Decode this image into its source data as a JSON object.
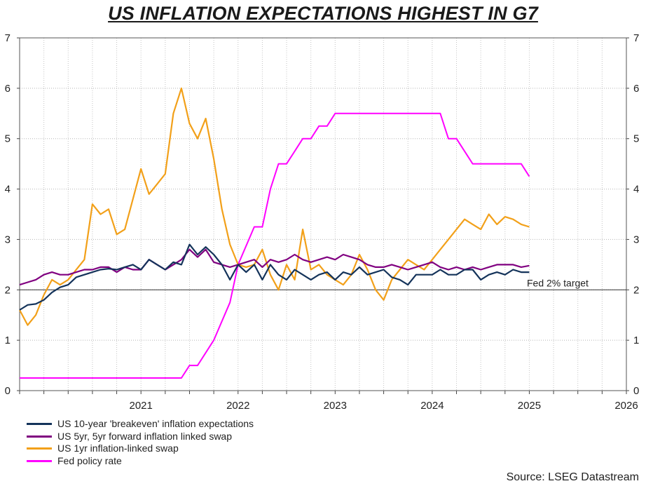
{
  "chart_data": {
    "type": "line",
    "title": "US INFLATION EXPECTATIONS HIGHEST IN G7",
    "xlabel": "",
    "ylabel": "",
    "x_ticks": [
      "2021",
      "2022",
      "2023",
      "2024",
      "2025",
      "2026"
    ],
    "y_ticks": [
      0,
      1,
      2,
      3,
      4,
      5,
      6,
      7
    ],
    "ylim": [
      0,
      7
    ],
    "xlim": [
      "2020-04",
      "2026-07"
    ],
    "grid": true,
    "dual_y_axis": true,
    "legend_position": "bottom-left",
    "reference_lines": [
      {
        "y": 2,
        "label": "Fed 2% target"
      }
    ],
    "series": [
      {
        "name": "US 10-year 'breakeven' inflation expectations",
        "color": "#14335a",
        "points": [
          [
            "2020-04",
            1.6
          ],
          [
            "2020-05",
            1.7
          ],
          [
            "2020-06",
            1.72
          ],
          [
            "2020-07",
            1.8
          ],
          [
            "2020-08",
            1.95
          ],
          [
            "2020-09",
            2.05
          ],
          [
            "2020-10",
            2.1
          ],
          [
            "2020-11",
            2.25
          ],
          [
            "2020-12",
            2.3
          ],
          [
            "2021-01",
            2.35
          ],
          [
            "2021-02",
            2.4
          ],
          [
            "2021-03",
            2.42
          ],
          [
            "2021-04",
            2.4
          ],
          [
            "2021-05",
            2.45
          ],
          [
            "2021-06",
            2.5
          ],
          [
            "2021-07",
            2.4
          ],
          [
            "2021-08",
            2.6
          ],
          [
            "2021-09",
            2.5
          ],
          [
            "2021-10",
            2.4
          ],
          [
            "2021-11",
            2.55
          ],
          [
            "2021-12",
            2.5
          ],
          [
            "2022-01",
            2.9
          ],
          [
            "2022-02",
            2.7
          ],
          [
            "2022-03",
            2.85
          ],
          [
            "2022-04",
            2.7
          ],
          [
            "2022-05",
            2.5
          ],
          [
            "2022-06",
            2.2
          ],
          [
            "2022-07",
            2.5
          ],
          [
            "2022-08",
            2.35
          ],
          [
            "2022-09",
            2.5
          ],
          [
            "2022-10",
            2.2
          ],
          [
            "2022-11",
            2.5
          ],
          [
            "2022-12",
            2.3
          ],
          [
            "2023-01",
            2.2
          ],
          [
            "2023-02",
            2.4
          ],
          [
            "2023-03",
            2.3
          ],
          [
            "2023-04",
            2.2
          ],
          [
            "2023-05",
            2.3
          ],
          [
            "2023-06",
            2.35
          ],
          [
            "2023-07",
            2.2
          ],
          [
            "2023-08",
            2.35
          ],
          [
            "2023-09",
            2.3
          ],
          [
            "2023-10",
            2.45
          ],
          [
            "2023-11",
            2.3
          ],
          [
            "2023-12",
            2.35
          ],
          [
            "2024-01",
            2.4
          ],
          [
            "2024-02",
            2.25
          ],
          [
            "2024-03",
            2.2
          ],
          [
            "2024-04",
            2.1
          ],
          [
            "2024-05",
            2.3
          ],
          [
            "2024-06",
            2.3
          ],
          [
            "2024-07",
            2.3
          ],
          [
            "2024-08",
            2.4
          ],
          [
            "2024-09",
            2.3
          ],
          [
            "2024-10",
            2.3
          ],
          [
            "2024-11",
            2.4
          ],
          [
            "2024-12",
            2.4
          ],
          [
            "2025-01",
            2.2
          ],
          [
            "2025-02",
            2.3
          ],
          [
            "2025-03",
            2.35
          ],
          [
            "2025-04",
            2.3
          ],
          [
            "2025-05",
            2.4
          ],
          [
            "2025-06",
            2.35
          ],
          [
            "2025-07",
            2.35
          ]
        ]
      },
      {
        "name": "US 5yr, 5yr forward inflation linked swap",
        "color": "#800080",
        "points": [
          [
            "2020-04",
            2.1
          ],
          [
            "2020-05",
            2.15
          ],
          [
            "2020-06",
            2.2
          ],
          [
            "2020-07",
            2.3
          ],
          [
            "2020-08",
            2.35
          ],
          [
            "2020-09",
            2.3
          ],
          [
            "2020-10",
            2.3
          ],
          [
            "2020-11",
            2.35
          ],
          [
            "2020-12",
            2.4
          ],
          [
            "2021-01",
            2.4
          ],
          [
            "2021-02",
            2.45
          ],
          [
            "2021-03",
            2.45
          ],
          [
            "2021-04",
            2.35
          ],
          [
            "2021-05",
            2.45
          ],
          [
            "2021-06",
            2.4
          ],
          [
            "2021-07",
            2.4
          ],
          [
            "2021-08",
            2.6
          ],
          [
            "2021-09",
            2.5
          ],
          [
            "2021-10",
            2.4
          ],
          [
            "2021-11",
            2.5
          ],
          [
            "2021-12",
            2.6
          ],
          [
            "2022-01",
            2.8
          ],
          [
            "2022-02",
            2.65
          ],
          [
            "2022-03",
            2.8
          ],
          [
            "2022-04",
            2.55
          ],
          [
            "2022-05",
            2.5
          ],
          [
            "2022-06",
            2.45
          ],
          [
            "2022-07",
            2.5
          ],
          [
            "2022-08",
            2.55
          ],
          [
            "2022-09",
            2.6
          ],
          [
            "2022-10",
            2.45
          ],
          [
            "2022-11",
            2.6
          ],
          [
            "2022-12",
            2.55
          ],
          [
            "2023-01",
            2.6
          ],
          [
            "2023-02",
            2.7
          ],
          [
            "2023-03",
            2.6
          ],
          [
            "2023-04",
            2.55
          ],
          [
            "2023-05",
            2.6
          ],
          [
            "2023-06",
            2.65
          ],
          [
            "2023-07",
            2.6
          ],
          [
            "2023-08",
            2.7
          ],
          [
            "2023-09",
            2.65
          ],
          [
            "2023-10",
            2.6
          ],
          [
            "2023-11",
            2.5
          ],
          [
            "2023-12",
            2.45
          ],
          [
            "2024-01",
            2.45
          ],
          [
            "2024-02",
            2.5
          ],
          [
            "2024-03",
            2.45
          ],
          [
            "2024-04",
            2.4
          ],
          [
            "2024-05",
            2.45
          ],
          [
            "2024-06",
            2.5
          ],
          [
            "2024-07",
            2.55
          ],
          [
            "2024-08",
            2.45
          ],
          [
            "2024-09",
            2.4
          ],
          [
            "2024-10",
            2.45
          ],
          [
            "2024-11",
            2.4
          ],
          [
            "2024-12",
            2.45
          ],
          [
            "2025-01",
            2.4
          ],
          [
            "2025-02",
            2.45
          ],
          [
            "2025-03",
            2.5
          ],
          [
            "2025-04",
            2.5
          ],
          [
            "2025-05",
            2.5
          ],
          [
            "2025-06",
            2.45
          ],
          [
            "2025-07",
            2.48
          ]
        ]
      },
      {
        "name": "US 1yr inflation-linked swap",
        "color": "#f2a019",
        "points": [
          [
            "2020-04",
            1.6
          ],
          [
            "2020-05",
            1.3
          ],
          [
            "2020-06",
            1.5
          ],
          [
            "2020-07",
            1.9
          ],
          [
            "2020-08",
            2.2
          ],
          [
            "2020-09",
            2.1
          ],
          [
            "2020-10",
            2.2
          ],
          [
            "2020-11",
            2.4
          ],
          [
            "2020-12",
            2.6
          ],
          [
            "2021-01",
            3.7
          ],
          [
            "2021-02",
            3.5
          ],
          [
            "2021-03",
            3.6
          ],
          [
            "2021-04",
            3.1
          ],
          [
            "2021-05",
            3.2
          ],
          [
            "2021-06",
            3.8
          ],
          [
            "2021-07",
            4.4
          ],
          [
            "2021-08",
            3.9
          ],
          [
            "2021-09",
            4.1
          ],
          [
            "2021-10",
            4.3
          ],
          [
            "2021-11",
            5.5
          ],
          [
            "2021-12",
            6.0
          ],
          [
            "2022-01",
            5.3
          ],
          [
            "2022-02",
            5.0
          ],
          [
            "2022-03",
            5.4
          ],
          [
            "2022-04",
            4.6
          ],
          [
            "2022-05",
            3.6
          ],
          [
            "2022-06",
            2.9
          ],
          [
            "2022-07",
            2.5
          ],
          [
            "2022-08",
            2.45
          ],
          [
            "2022-09",
            2.5
          ],
          [
            "2022-10",
            2.8
          ],
          [
            "2022-11",
            2.3
          ],
          [
            "2022-12",
            2.0
          ],
          [
            "2023-01",
            2.5
          ],
          [
            "2023-02",
            2.2
          ],
          [
            "2023-03",
            3.2
          ],
          [
            "2023-04",
            2.4
          ],
          [
            "2023-05",
            2.5
          ],
          [
            "2023-06",
            2.3
          ],
          [
            "2023-07",
            2.2
          ],
          [
            "2023-08",
            2.1
          ],
          [
            "2023-09",
            2.3
          ],
          [
            "2023-10",
            2.7
          ],
          [
            "2023-11",
            2.4
          ],
          [
            "2023-12",
            2.0
          ],
          [
            "2024-01",
            1.8
          ],
          [
            "2024-02",
            2.2
          ],
          [
            "2024-03",
            2.4
          ],
          [
            "2024-04",
            2.6
          ],
          [
            "2024-05",
            2.5
          ],
          [
            "2024-06",
            2.4
          ],
          [
            "2024-07",
            2.6
          ],
          [
            "2024-08",
            2.8
          ],
          [
            "2024-09",
            3.0
          ],
          [
            "2024-10",
            3.2
          ],
          [
            "2024-11",
            3.4
          ],
          [
            "2024-12",
            3.3
          ],
          [
            "2025-01",
            3.2
          ],
          [
            "2025-02",
            3.5
          ],
          [
            "2025-03",
            3.3
          ],
          [
            "2025-04",
            3.45
          ],
          [
            "2025-05",
            3.4
          ],
          [
            "2025-06",
            3.3
          ],
          [
            "2025-07",
            3.25
          ]
        ]
      },
      {
        "name": "Fed policy rate",
        "color": "#ff00ff",
        "points": [
          [
            "2020-04",
            0.25
          ],
          [
            "2021-12",
            0.25
          ],
          [
            "2022-01",
            0.5
          ],
          [
            "2022-02",
            0.5
          ],
          [
            "2022-04",
            1.0
          ],
          [
            "2022-06",
            1.75
          ],
          [
            "2022-07",
            2.5
          ],
          [
            "2022-09",
            3.25
          ],
          [
            "2022-10",
            3.25
          ],
          [
            "2022-11",
            4.0
          ],
          [
            "2022-12",
            4.5
          ],
          [
            "2023-01",
            4.5
          ],
          [
            "2023-02",
            4.75
          ],
          [
            "2023-03",
            5.0
          ],
          [
            "2023-04",
            5.0
          ],
          [
            "2023-05",
            5.25
          ],
          [
            "2023-06",
            5.25
          ],
          [
            "2023-07",
            5.5
          ],
          [
            "2024-08",
            5.5
          ],
          [
            "2024-09",
            5.0
          ],
          [
            "2024-10",
            5.0
          ],
          [
            "2024-11",
            4.75
          ],
          [
            "2024-12",
            4.5
          ],
          [
            "2025-06",
            4.5
          ],
          [
            "2025-07",
            4.25
          ]
        ]
      }
    ]
  },
  "labels": {
    "title": "US INFLATION EXPECTATIONS HIGHEST IN G7",
    "target_annotation": "Fed 2% target",
    "source": "Source: LSEG Datastream"
  }
}
